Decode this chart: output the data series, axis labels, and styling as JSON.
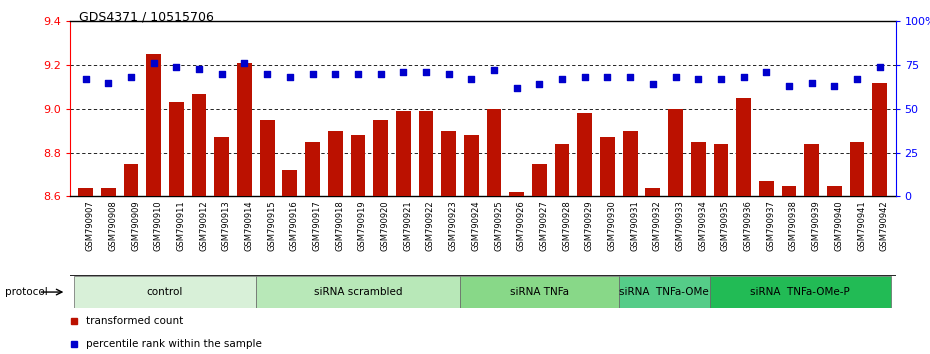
{
  "title": "GDS4371 / 10515706",
  "samples": [
    "GSM790907",
    "GSM790908",
    "GSM790909",
    "GSM790910",
    "GSM790911",
    "GSM790912",
    "GSM790913",
    "GSM790914",
    "GSM790915",
    "GSM790916",
    "GSM790917",
    "GSM790918",
    "GSM790919",
    "GSM790920",
    "GSM790921",
    "GSM790922",
    "GSM790923",
    "GSM790924",
    "GSM790925",
    "GSM790926",
    "GSM790927",
    "GSM790928",
    "GSM790929",
    "GSM790930",
    "GSM790931",
    "GSM790932",
    "GSM790933",
    "GSM790934",
    "GSM790935",
    "GSM790936",
    "GSM790937",
    "GSM790938",
    "GSM790939",
    "GSM790940",
    "GSM790941",
    "GSM790942"
  ],
  "bar_values": [
    8.64,
    8.64,
    8.75,
    9.25,
    9.03,
    9.07,
    8.87,
    9.21,
    8.95,
    8.72,
    8.85,
    8.9,
    8.88,
    8.95,
    8.99,
    8.99,
    8.9,
    8.88,
    9.0,
    8.62,
    8.75,
    8.84,
    8.98,
    8.87,
    8.9,
    8.64,
    9.0,
    8.85,
    8.84,
    9.05,
    8.67,
    8.65,
    8.84,
    8.65,
    8.85,
    9.12
  ],
  "dot_values": [
    67,
    65,
    68,
    76,
    74,
    73,
    70,
    76,
    70,
    68,
    70,
    70,
    70,
    70,
    71,
    71,
    70,
    67,
    72,
    62,
    64,
    67,
    68,
    68,
    68,
    64,
    68,
    67,
    67,
    68,
    71,
    63,
    65,
    63,
    67,
    74
  ],
  "groups": [
    {
      "label": "control",
      "start": 0,
      "end": 8,
      "color": "#d8f0d8"
    },
    {
      "label": "siRNA scrambled",
      "start": 8,
      "end": 17,
      "color": "#b8e8b8"
    },
    {
      "label": "siRNA TNFa",
      "start": 17,
      "end": 24,
      "color": "#88d888"
    },
    {
      "label": "siRNA  TNFa-OMe",
      "start": 24,
      "end": 28,
      "color": "#55cc88"
    },
    {
      "label": "siRNA  TNFa-OMe-P",
      "start": 28,
      "end": 36,
      "color": "#22bb55"
    }
  ],
  "ylim_left": [
    8.6,
    9.4
  ],
  "ylim_right": [
    0,
    100
  ],
  "yticks_left": [
    8.6,
    8.8,
    9.0,
    9.2,
    9.4
  ],
  "yticks_right": [
    0,
    25,
    50,
    75,
    100
  ],
  "ytick_labels_right": [
    "0",
    "25",
    "50",
    "75",
    "100%"
  ],
  "dotted_lines": [
    8.8,
    9.0,
    9.2
  ],
  "bar_color": "#bb1100",
  "dot_color": "#0000cc",
  "xtick_bg": "#d0d0d0",
  "legend_bar": "transformed count",
  "legend_dot": "percentile rank within the sample"
}
